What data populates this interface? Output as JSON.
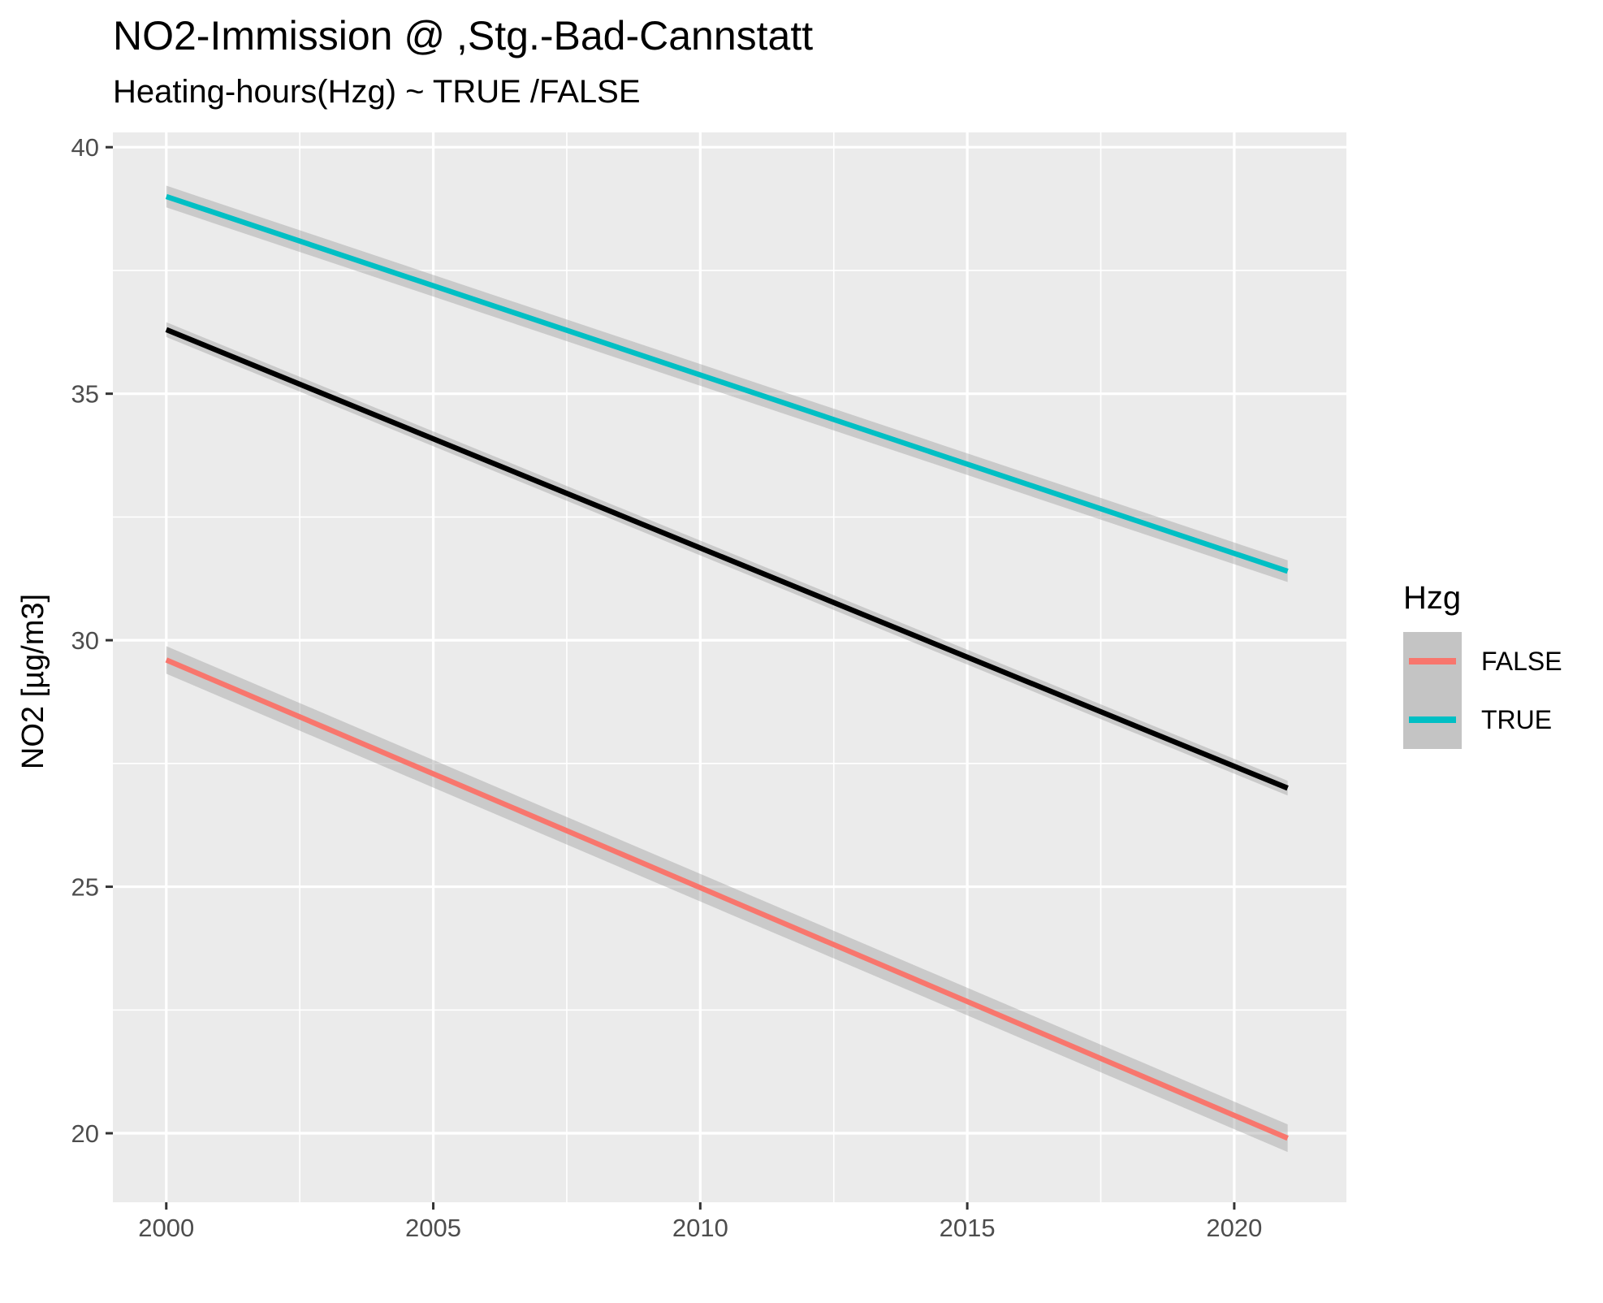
{
  "chart_data": {
    "type": "line",
    "title": "NO2-Immission @ ,Stg.-Bad-Cannstatt",
    "subtitle": "Heating-hours(Hzg) ~ TRUE /FALSE",
    "xlabel": "",
    "ylabel": "NO2 [µg/m3]",
    "xlim": [
      1999,
      2022.1
    ],
    "ylim": [
      18.6,
      40.3
    ],
    "x_ticks": [
      2000,
      2005,
      2010,
      2015,
      2020
    ],
    "y_ticks": [
      20,
      25,
      30,
      35,
      40
    ],
    "grid": true,
    "legend": {
      "title": "Hzg",
      "position": "right"
    },
    "series": [
      {
        "name": "FALSE",
        "color": "#F8766D",
        "x": [
          2000,
          2021
        ],
        "y": [
          29.6,
          19.9
        ],
        "ci": [
          0.28,
          0.28
        ]
      },
      {
        "name": "TRUE",
        "color": "#00BFC4",
        "x": [
          2000,
          2021
        ],
        "y": [
          39.0,
          31.4
        ],
        "ci": [
          0.22,
          0.22
        ]
      },
      {
        "color": "#000000",
        "x": [
          2000,
          2021
        ],
        "y": [
          36.3,
          27.0
        ],
        "ci": [
          0.15,
          0.15
        ]
      }
    ]
  }
}
